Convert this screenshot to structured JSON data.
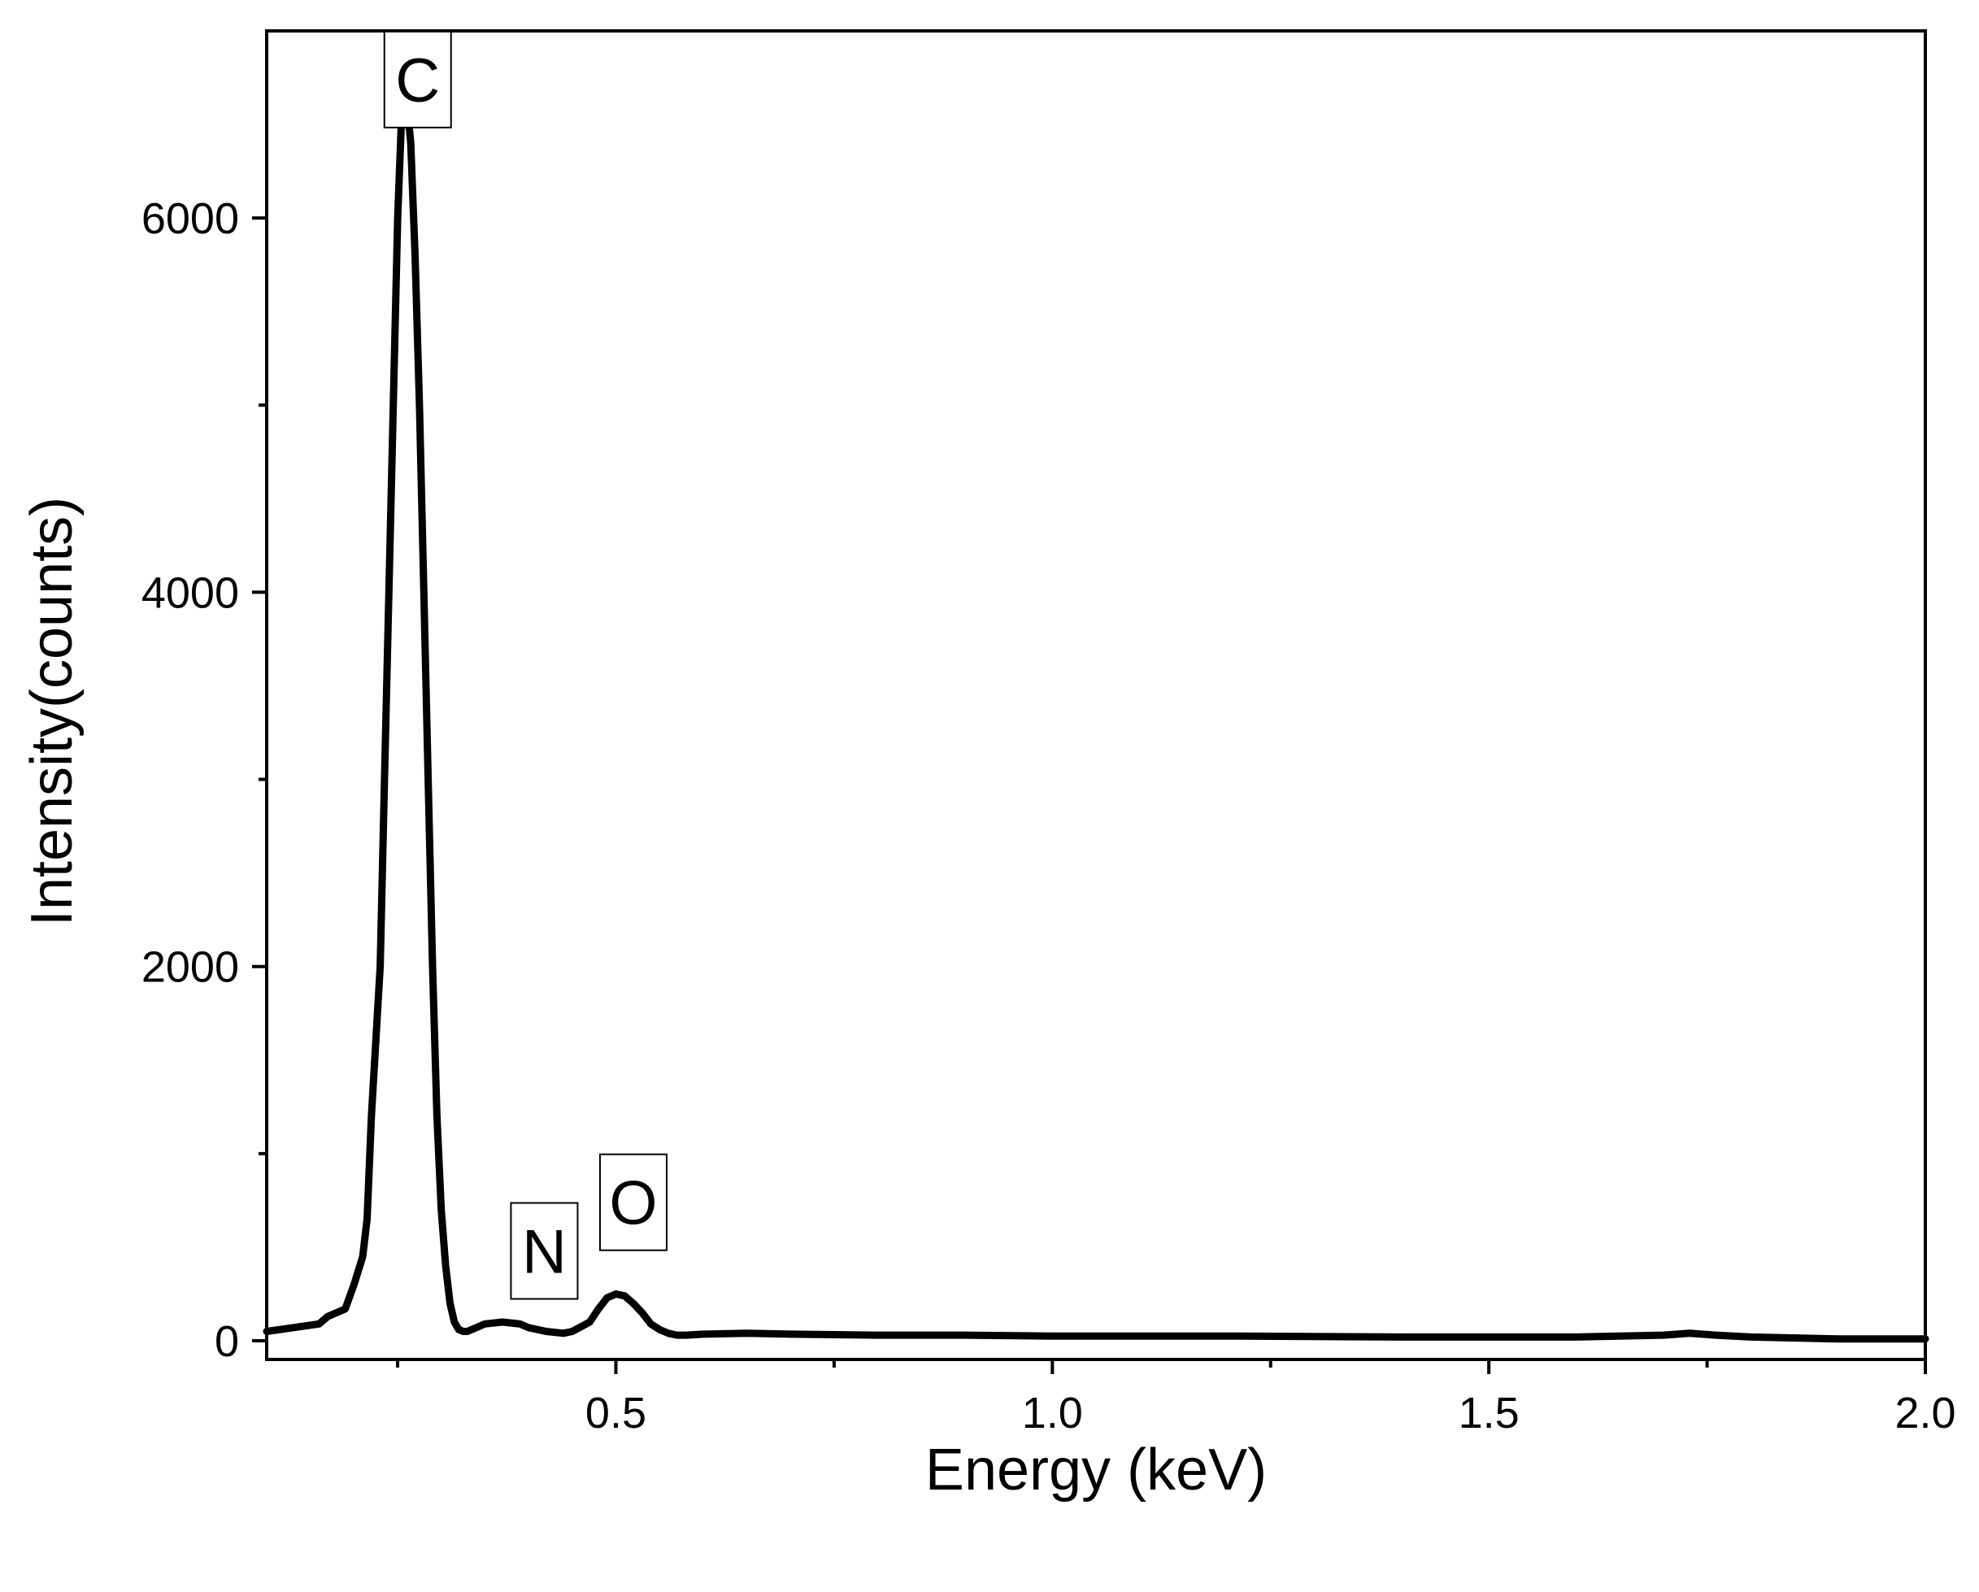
{
  "chart_data": {
    "type": "line",
    "xlabel": "Energy (keV)",
    "ylabel": "Intensity(counts)",
    "xlim": [
      0.1,
      2.0
    ],
    "ylim": [
      -100,
      7000
    ],
    "x_ticks": [
      0.5,
      1.0,
      1.5,
      2.0
    ],
    "x_tick_labels": [
      "0.5",
      "1.0",
      "1.5",
      "2.0"
    ],
    "x_minor_ticks": [
      0.25,
      0.75,
      1.25,
      1.75
    ],
    "y_ticks": [
      0,
      2000,
      4000,
      6000
    ],
    "y_tick_labels": [
      "0",
      "2000",
      "4000",
      "6000"
    ],
    "y_minor_ticks": [
      1000,
      3000,
      5000
    ],
    "grid": false,
    "series": [
      {
        "color": "#000000",
        "x": [
          0.1,
          0.13,
          0.16,
          0.17,
          0.18,
          0.19,
          0.2,
          0.21,
          0.215,
          0.22,
          0.23,
          0.235,
          0.24,
          0.245,
          0.25,
          0.255,
          0.26,
          0.265,
          0.27,
          0.275,
          0.28,
          0.285,
          0.29,
          0.295,
          0.3,
          0.305,
          0.31,
          0.315,
          0.32,
          0.325,
          0.33,
          0.34,
          0.35,
          0.37,
          0.39,
          0.4,
          0.42,
          0.44,
          0.45,
          0.47,
          0.48,
          0.49,
          0.5,
          0.51,
          0.52,
          0.53,
          0.54,
          0.55,
          0.56,
          0.57,
          0.58,
          0.6,
          0.65,
          0.7,
          0.8,
          0.9,
          1.0,
          1.2,
          1.4,
          1.6,
          1.7,
          1.73,
          1.76,
          1.8,
          1.9,
          2.0
        ],
        "y": [
          50,
          70,
          90,
          130,
          150,
          170,
          300,
          450,
          650,
          1200,
          2000,
          3000,
          4000,
          5000,
          6000,
          6600,
          6650,
          6400,
          5800,
          5000,
          4000,
          3000,
          2000,
          1200,
          700,
          400,
          200,
          100,
          60,
          50,
          50,
          70,
          90,
          100,
          90,
          70,
          50,
          40,
          50,
          100,
          170,
          230,
          250,
          240,
          200,
          150,
          90,
          60,
          40,
          30,
          30,
          35,
          40,
          35,
          30,
          30,
          25,
          25,
          20,
          20,
          30,
          40,
          30,
          20,
          10,
          10
        ]
      }
    ],
    "annotations": [
      {
        "text": "C",
        "x": 0.273,
        "y": 6740
      },
      {
        "text": "N",
        "x": 0.418,
        "y": 480
      },
      {
        "text": "O",
        "x": 0.52,
        "y": 740
      }
    ]
  }
}
